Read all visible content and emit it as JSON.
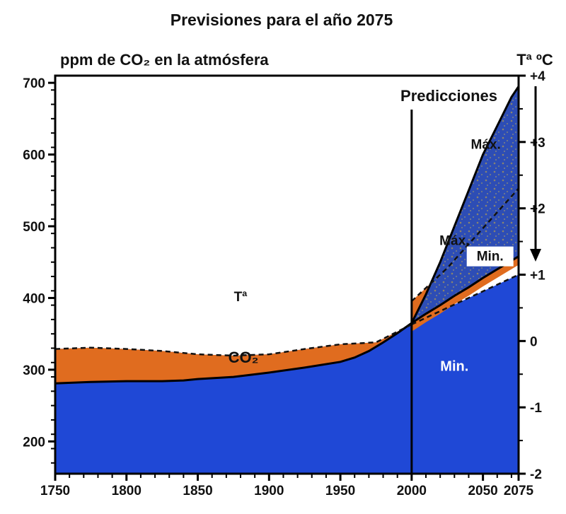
{
  "chart_data": {
    "type": "area",
    "title": "Previsiones para el año 2075",
    "ylabel": "ppm de CO₂ en la atmósfera",
    "y2label": "Tª ºC",
    "x_ticks": [
      "1750",
      "1800",
      "1850",
      "1900",
      "1950",
      "2000",
      "2050",
      "2075"
    ],
    "y_ticks": [
      "200",
      "300",
      "400",
      "500",
      "600",
      "700"
    ],
    "y2_ticks": [
      "-2",
      "-1",
      "0",
      "+1",
      "+2",
      "+3",
      "+4"
    ],
    "xlim": [
      1750,
      2075
    ],
    "ylim": [
      155,
      710
    ],
    "y2lim": [
      -2,
      4
    ],
    "colors": {
      "co2_max": "#2d4db5",
      "temperature": "#e06c1f",
      "temperature_min": "#1f48d6",
      "lines": "#000000"
    },
    "annotations": {
      "predicciones": "Predicciones",
      "co2": "CO₂",
      "temp": "Tª",
      "max_co2": "Máx.",
      "min_co2": "Min.",
      "max_temp": "Máx.",
      "min_temp": "Min."
    },
    "prediction_year": 2000,
    "series": [
      {
        "name": "CO₂",
        "x": [
          1750,
          1775,
          1800,
          1825,
          1840,
          1850,
          1875,
          1900,
          1925,
          1950,
          1960,
          1970,
          1980,
          1990,
          2000
        ],
        "y": [
          281,
          283,
          284,
          284,
          285,
          287,
          290,
          296,
          303,
          311,
          317,
          326,
          338,
          351,
          365
        ]
      },
      {
        "name": "Máx.",
        "x": [
          2000,
          2010,
          2020,
          2030,
          2040,
          2050,
          2060,
          2070,
          2075
        ],
        "y": [
          365,
          405,
          450,
          500,
          550,
          600,
          640,
          680,
          695
        ]
      },
      {
        "name": "Min.",
        "x": [
          2000,
          2010,
          2020,
          2030,
          2040,
          2050,
          2060,
          2070,
          2075
        ],
        "y": [
          365,
          378,
          390,
          403,
          415,
          428,
          440,
          452,
          458
        ]
      },
      {
        "name": "Tª",
        "x": [
          1750,
          1775,
          1800,
          1825,
          1850,
          1875,
          1900,
          1925,
          1950,
          1975,
          2000
        ],
        "y": [
          -0.12,
          -0.1,
          -0.12,
          -0.15,
          -0.2,
          -0.22,
          -0.2,
          -0.12,
          -0.05,
          -0.02,
          0.25
        ]
      },
      {
        "name": "Máx.",
        "x": [
          2000,
          2025,
          2050,
          2075
        ],
        "y": [
          0.6,
          1.1,
          1.7,
          2.3
        ]
      },
      {
        "name": "Min.",
        "x": [
          2000,
          2025,
          2050,
          2075
        ],
        "y": [
          0.25,
          0.5,
          0.75,
          1.0
        ]
      }
    ]
  }
}
